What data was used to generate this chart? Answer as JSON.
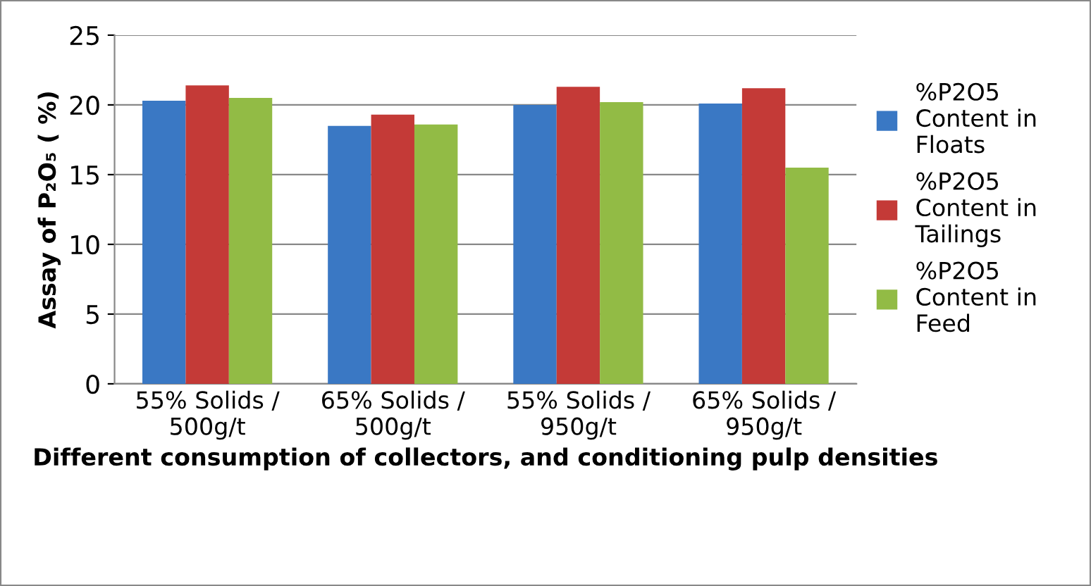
{
  "chart_data": {
    "type": "bar",
    "xlabel": "Different consumption of collectors, and conditioning pulp densities",
    "ylabel": "Assay of P₂O₅ ( %)",
    "categories": [
      "55% Solids /\n500g/t",
      "65% Solids /\n500g/t",
      "55% Solids /\n950g/t",
      "65% Solids /\n950g/t"
    ],
    "series": [
      {
        "name": "%P2O5\nContent in\nFloats",
        "color": "#3a78c4",
        "values": [
          20.3,
          18.5,
          20.0,
          20.1
        ]
      },
      {
        "name": "%P2O5\nContent in\nTailings",
        "color": "#c43a37",
        "values": [
          21.4,
          19.3,
          21.3,
          21.2
        ]
      },
      {
        "name": "%P2O5\nContent in\nFeed",
        "color": "#92bb45",
        "values": [
          20.5,
          18.6,
          20.2,
          15.5
        ]
      }
    ],
    "ylim": [
      0,
      25
    ],
    "yticks": [
      0,
      5,
      10,
      15,
      20,
      25
    ],
    "grid": "y",
    "legend": "right"
  }
}
